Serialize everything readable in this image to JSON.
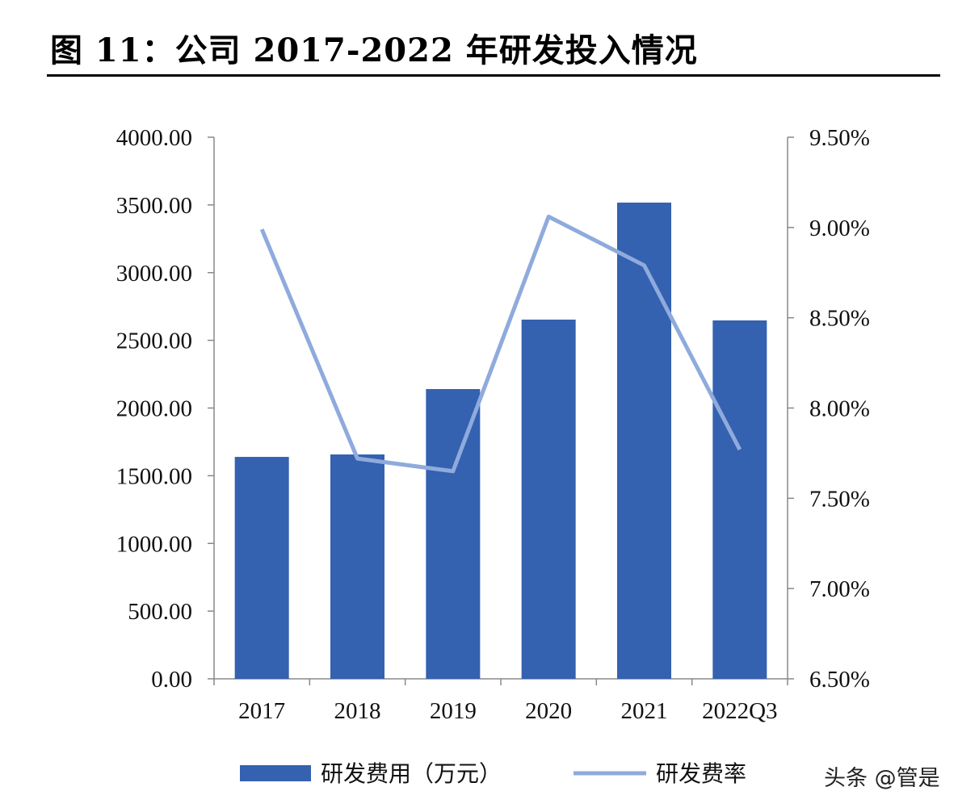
{
  "title": "图 11：公司 2017-2022 年研发投入情况",
  "watermark": "头条 @管是",
  "chart_data": {
    "type": "bar+line",
    "title": "图 11：公司 2017-2022 年研发投入情况",
    "categories": [
      "2017",
      "2018",
      "2019",
      "2020",
      "2021",
      "2022Q3"
    ],
    "series": [
      {
        "name": "研发费用（万元）",
        "type": "bar",
        "axis": "left",
        "color": "#3461b0",
        "values": [
          1639,
          1657,
          2140,
          2653,
          3517,
          2647
        ]
      },
      {
        "name": "研发费率",
        "type": "line",
        "axis": "right",
        "color": "#8faadc",
        "values": [
          8.99,
          7.72,
          7.65,
          9.06,
          8.79,
          7.77
        ]
      }
    ],
    "left_axis": {
      "ylim": [
        0,
        4000
      ],
      "ticks": [
        "0.00",
        "500.00",
        "1000.00",
        "1500.00",
        "2000.00",
        "2500.00",
        "3000.00",
        "3500.00",
        "4000.00"
      ]
    },
    "right_axis": {
      "ylim": [
        6.5,
        9.5
      ],
      "ticks": [
        "6.50%",
        "7.00%",
        "7.50%",
        "8.00%",
        "8.50%",
        "9.00%",
        "9.50%"
      ]
    },
    "legend": "bottom",
    "grid": false
  }
}
